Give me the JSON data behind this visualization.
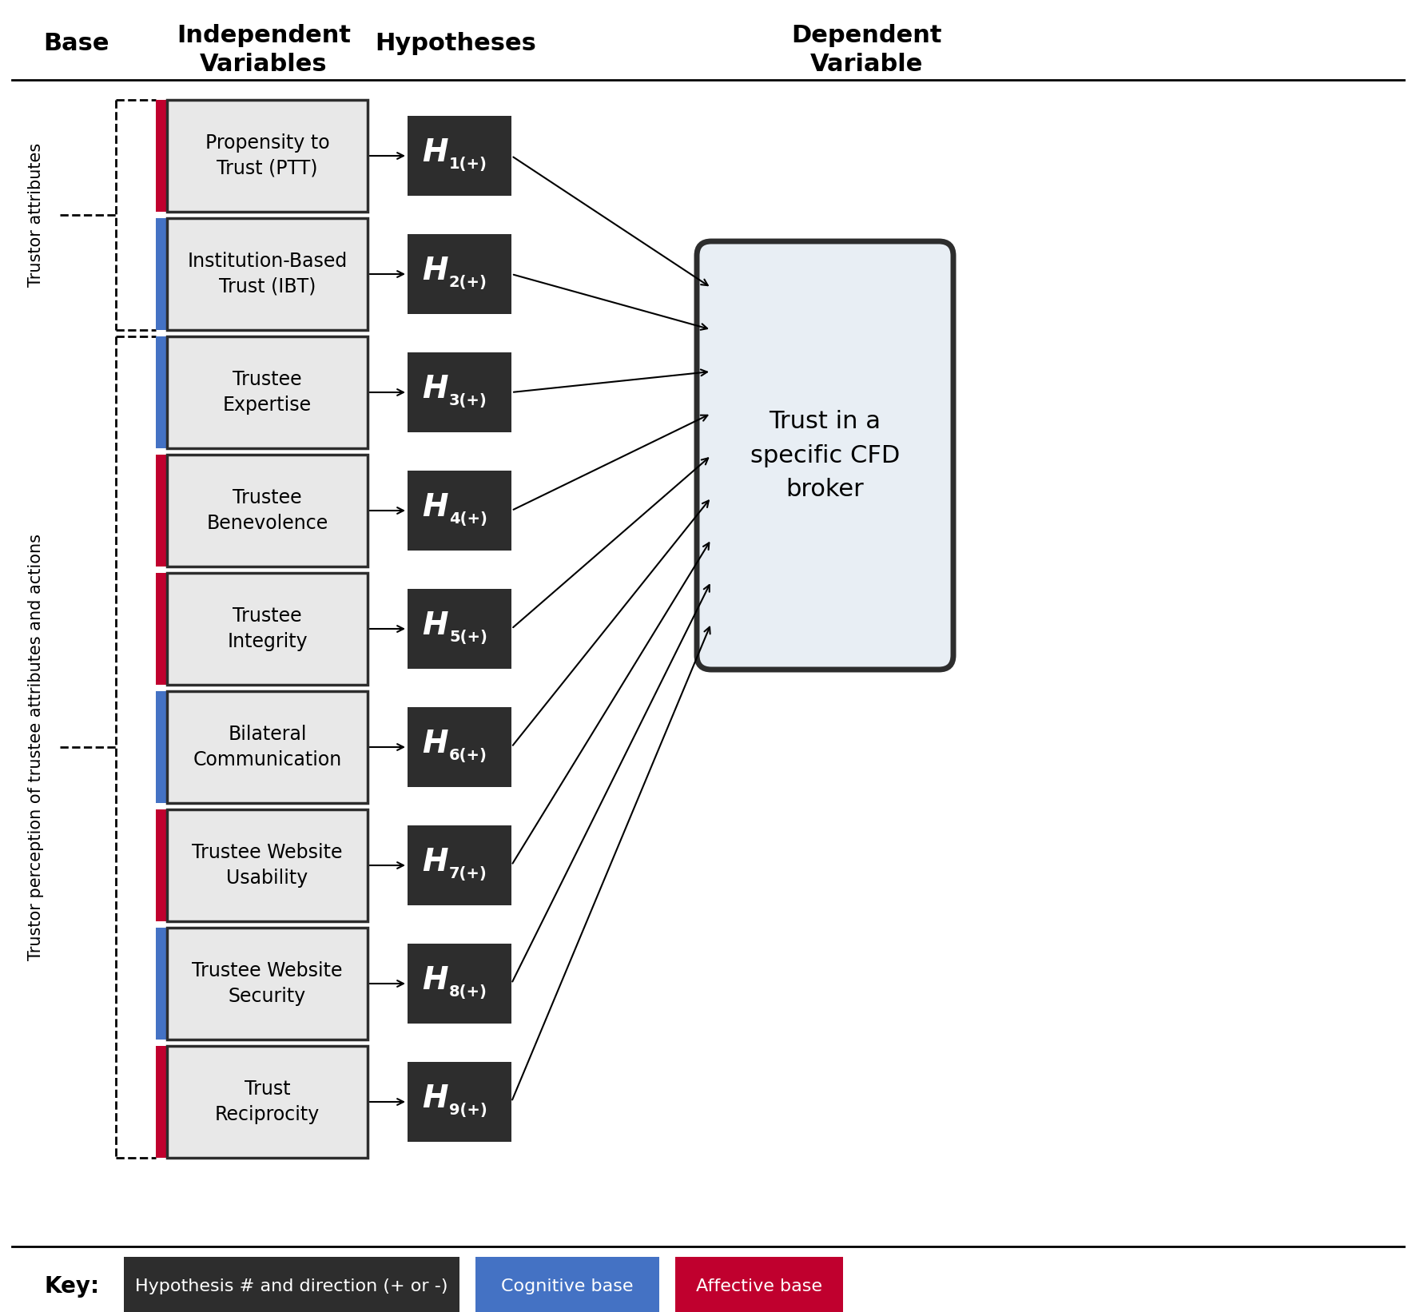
{
  "iv_labels": [
    "Propensity to\nTrust (PTT)",
    "Institution-Based\nTrust (IBT)",
    "Trustee\nExpertise",
    "Trustee\nBenevolence",
    "Trustee\nIntegrity",
    "Bilateral\nCommunication",
    "Trustee Website\nUsability",
    "Trustee Website\nSecurity",
    "Trust\nReciprocity"
  ],
  "hyp_subs": [
    "1(+)",
    "2(+)",
    "3(+)",
    "4(+)",
    "5(+)",
    "6(+)",
    "7(+)",
    "8(+)",
    "9(+)"
  ],
  "iv_colors_left": [
    "#C0002E",
    "#4472C4",
    "#4472C4",
    "#C0002E",
    "#C0002E",
    "#4472C4",
    "#C0002E",
    "#4472C4",
    "#C0002E"
  ],
  "dv_label": "Trust in a\nspecific CFD\nbroker",
  "base_label1": "Trustor attributes",
  "base_label2": "Trustor perception of trustee attributes and actions",
  "key_hyp": "Hypothesis # and direction (+ or -)",
  "key_cog": "Cognitive base",
  "key_aff": "Affective base",
  "bg_color": "#ffffff",
  "dark_box_color": "#2d2d2d",
  "iv_box_bg": "#e8e8e8",
  "iv_box_border": "#2d2d2d",
  "dv_box_bg": "#e8eef4",
  "dv_box_border": "#2d2d2d",
  "blue_color": "#4472C4",
  "red_color": "#C0002E"
}
